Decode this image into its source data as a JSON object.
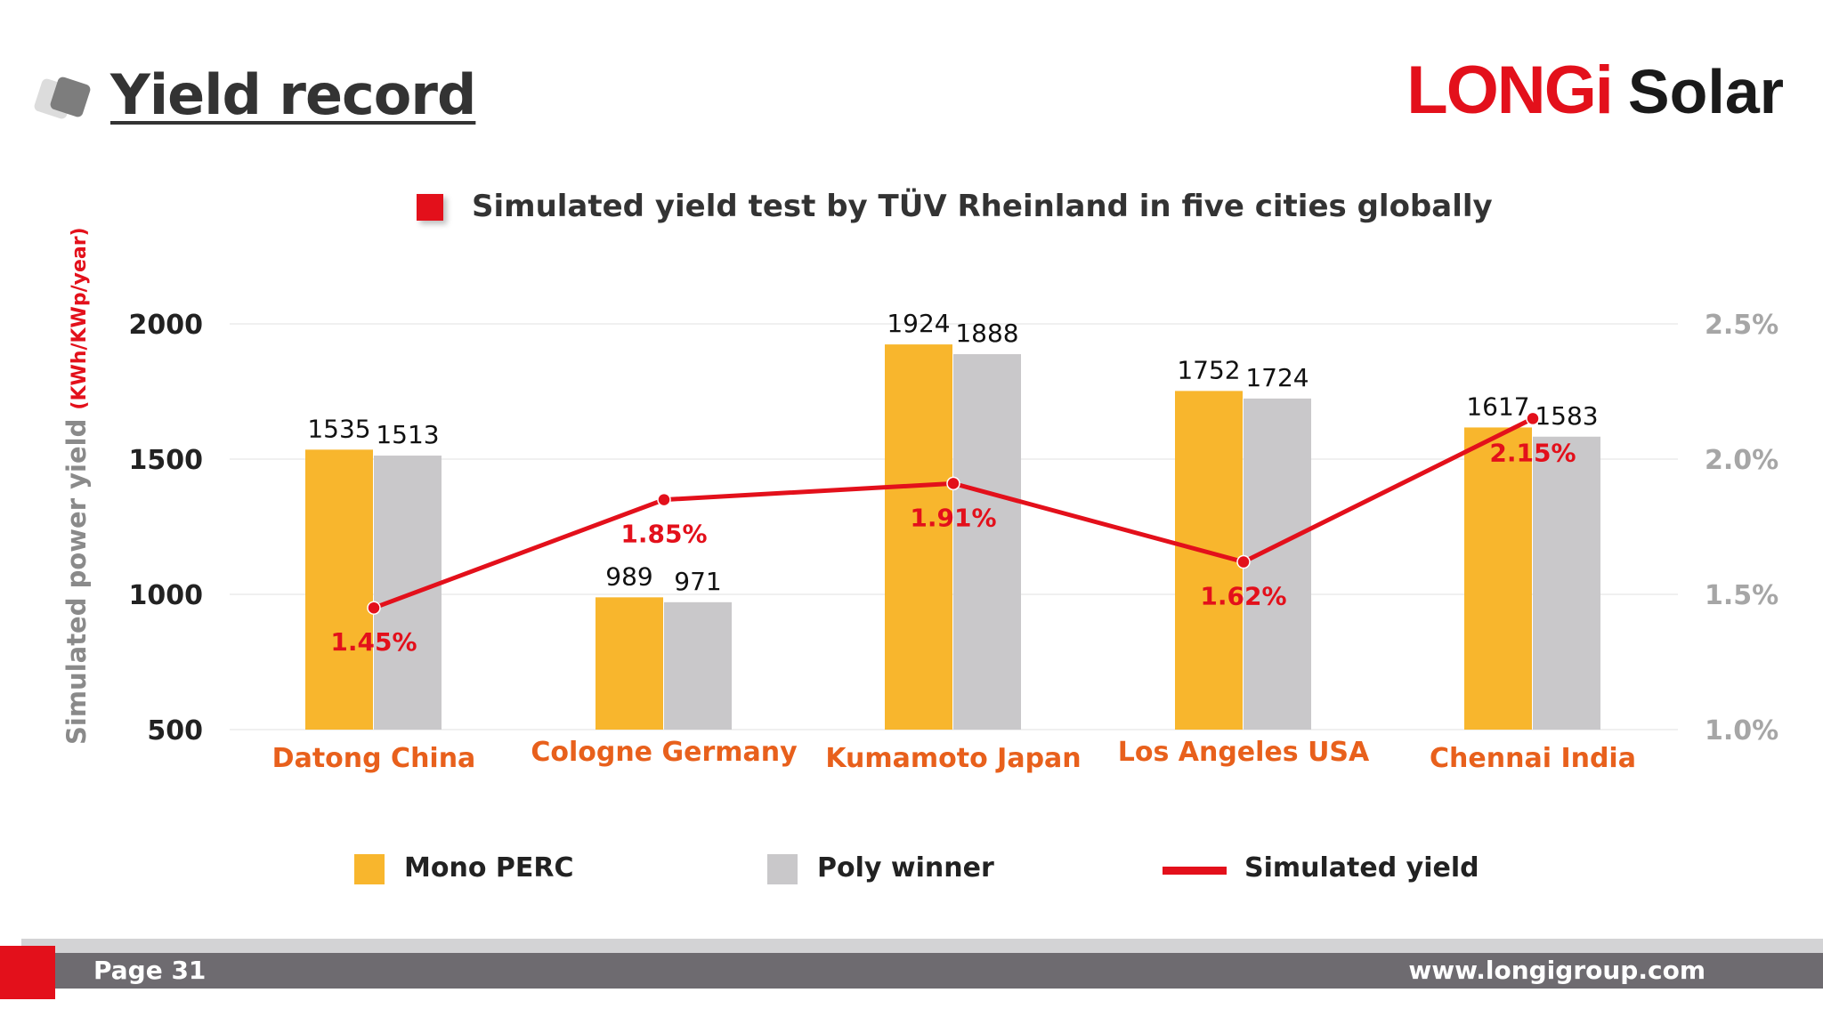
{
  "header": {
    "title": "Yield record",
    "logo_mark": "LONGi",
    "logo_word": "Solar"
  },
  "colors": {
    "mono": "#F8B62D",
    "poly": "#C9C8CA",
    "line": "#E3101B",
    "city": "#E8601C",
    "ylabel": "#8A8A8A",
    "yunit": "#E3101B",
    "right_axis": "#A6A6A6"
  },
  "chart_data": {
    "type": "bar",
    "title": "Simulated yield test by TÜV Rheinland in five cities globally",
    "categories": [
      "Datong China",
      "Cologne Germany",
      "Kumamoto Japan",
      "Los Angeles USA",
      "Chennai India"
    ],
    "series": [
      {
        "name": "Mono PERC",
        "values": [
          1535,
          989,
          1924,
          1752,
          1617
        ]
      },
      {
        "name": "Poly winner",
        "values": [
          1513,
          971,
          1888,
          1724,
          1583
        ]
      }
    ],
    "line_series": {
      "name": "Simulated yield",
      "values": [
        1.45,
        1.85,
        1.91,
        1.62,
        2.15
      ],
      "labels": [
        "1.45%",
        "1.85%",
        "1.91%",
        "1.62%",
        "2.15%"
      ],
      "axis": "right"
    },
    "ylabel": "Simulated power yield",
    "ylabel_unit": "(KWh/KWp/year)",
    "ylim": [
      500,
      2000
    ],
    "yticks": [
      500,
      1000,
      1500,
      2000
    ],
    "y2lim": [
      1.0,
      2.5
    ],
    "y2ticks": [
      "1.0%",
      "1.5%",
      "2.0%",
      "2.5%"
    ],
    "legend": [
      "Mono PERC",
      "Poly winner",
      "Simulated yield"
    ],
    "legend_position": "bottom"
  },
  "footer": {
    "page": "Page 31",
    "url": "www.longigroup.com"
  }
}
